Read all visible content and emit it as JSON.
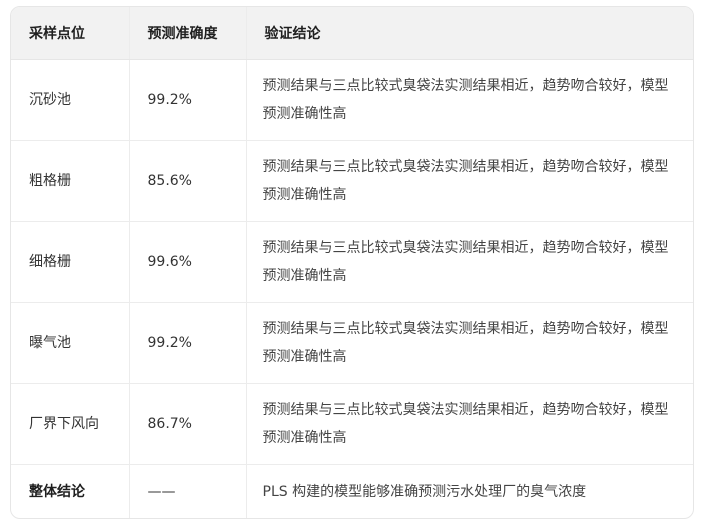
{
  "table": {
    "headers": [
      "采样点位",
      "预测准确度",
      "验证结论"
    ],
    "rows": [
      {
        "site": "沉砂池",
        "accuracy": "99.2%",
        "conclusion": "预测结果与三点比较式臭袋法实测结果相近，趋势吻合较好，模型预测准确性高"
      },
      {
        "site": "粗格栅",
        "accuracy": "85.6%",
        "conclusion": "预测结果与三点比较式臭袋法实测结果相近，趋势吻合较好，模型预测准确性高"
      },
      {
        "site": "细格栅",
        "accuracy": "99.6%",
        "conclusion": "预测结果与三点比较式臭袋法实测结果相近，趋势吻合较好，模型预测准确性高"
      },
      {
        "site": "曝气池",
        "accuracy": "99.2%",
        "conclusion": "预测结果与三点比较式臭袋法实测结果相近，趋势吻合较好，模型预测准确性高"
      },
      {
        "site": "厂界下风向",
        "accuracy": "86.7%",
        "conclusion": "预测结果与三点比较式臭袋法实测结果相近，趋势吻合较好，模型预测准确性高"
      }
    ],
    "summary": {
      "site": "整体结论",
      "accuracy": "——",
      "conclusion": "PLS 构建的模型能够准确预测污水处理厂的臭气浓度"
    }
  }
}
